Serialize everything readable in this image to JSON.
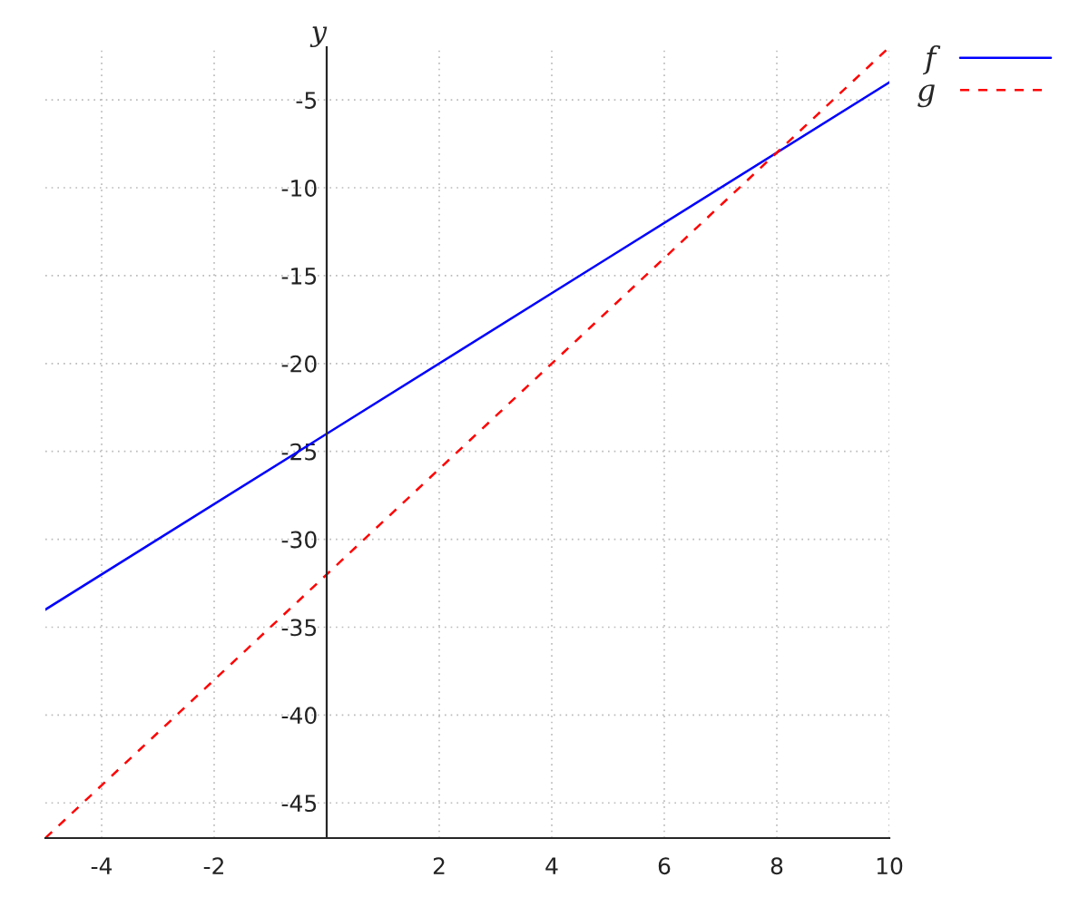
{
  "chart_data": {
    "type": "line",
    "ylabel": "y",
    "series": [
      {
        "name": "f",
        "color": "#0000ff",
        "line_style": "solid",
        "x": [
          -5,
          0,
          5,
          10
        ],
        "values": [
          -34,
          -24,
          -14,
          -4
        ]
      },
      {
        "name": "g",
        "color": "#ff0000",
        "line_style": "dashed",
        "x": [
          -5,
          0,
          5,
          10
        ],
        "values": [
          -47,
          -32,
          -17,
          -2
        ]
      }
    ],
    "xlim": [
      -5,
      10
    ],
    "ylim": [
      -47,
      -2
    ],
    "xticks": [
      -4,
      -2,
      2,
      4,
      6,
      8,
      10
    ],
    "yticks": [
      -45,
      -40,
      -35,
      -30,
      -25,
      -20,
      -15,
      -10,
      -5
    ],
    "grid": true,
    "legend": "top right",
    "marker": "none"
  }
}
